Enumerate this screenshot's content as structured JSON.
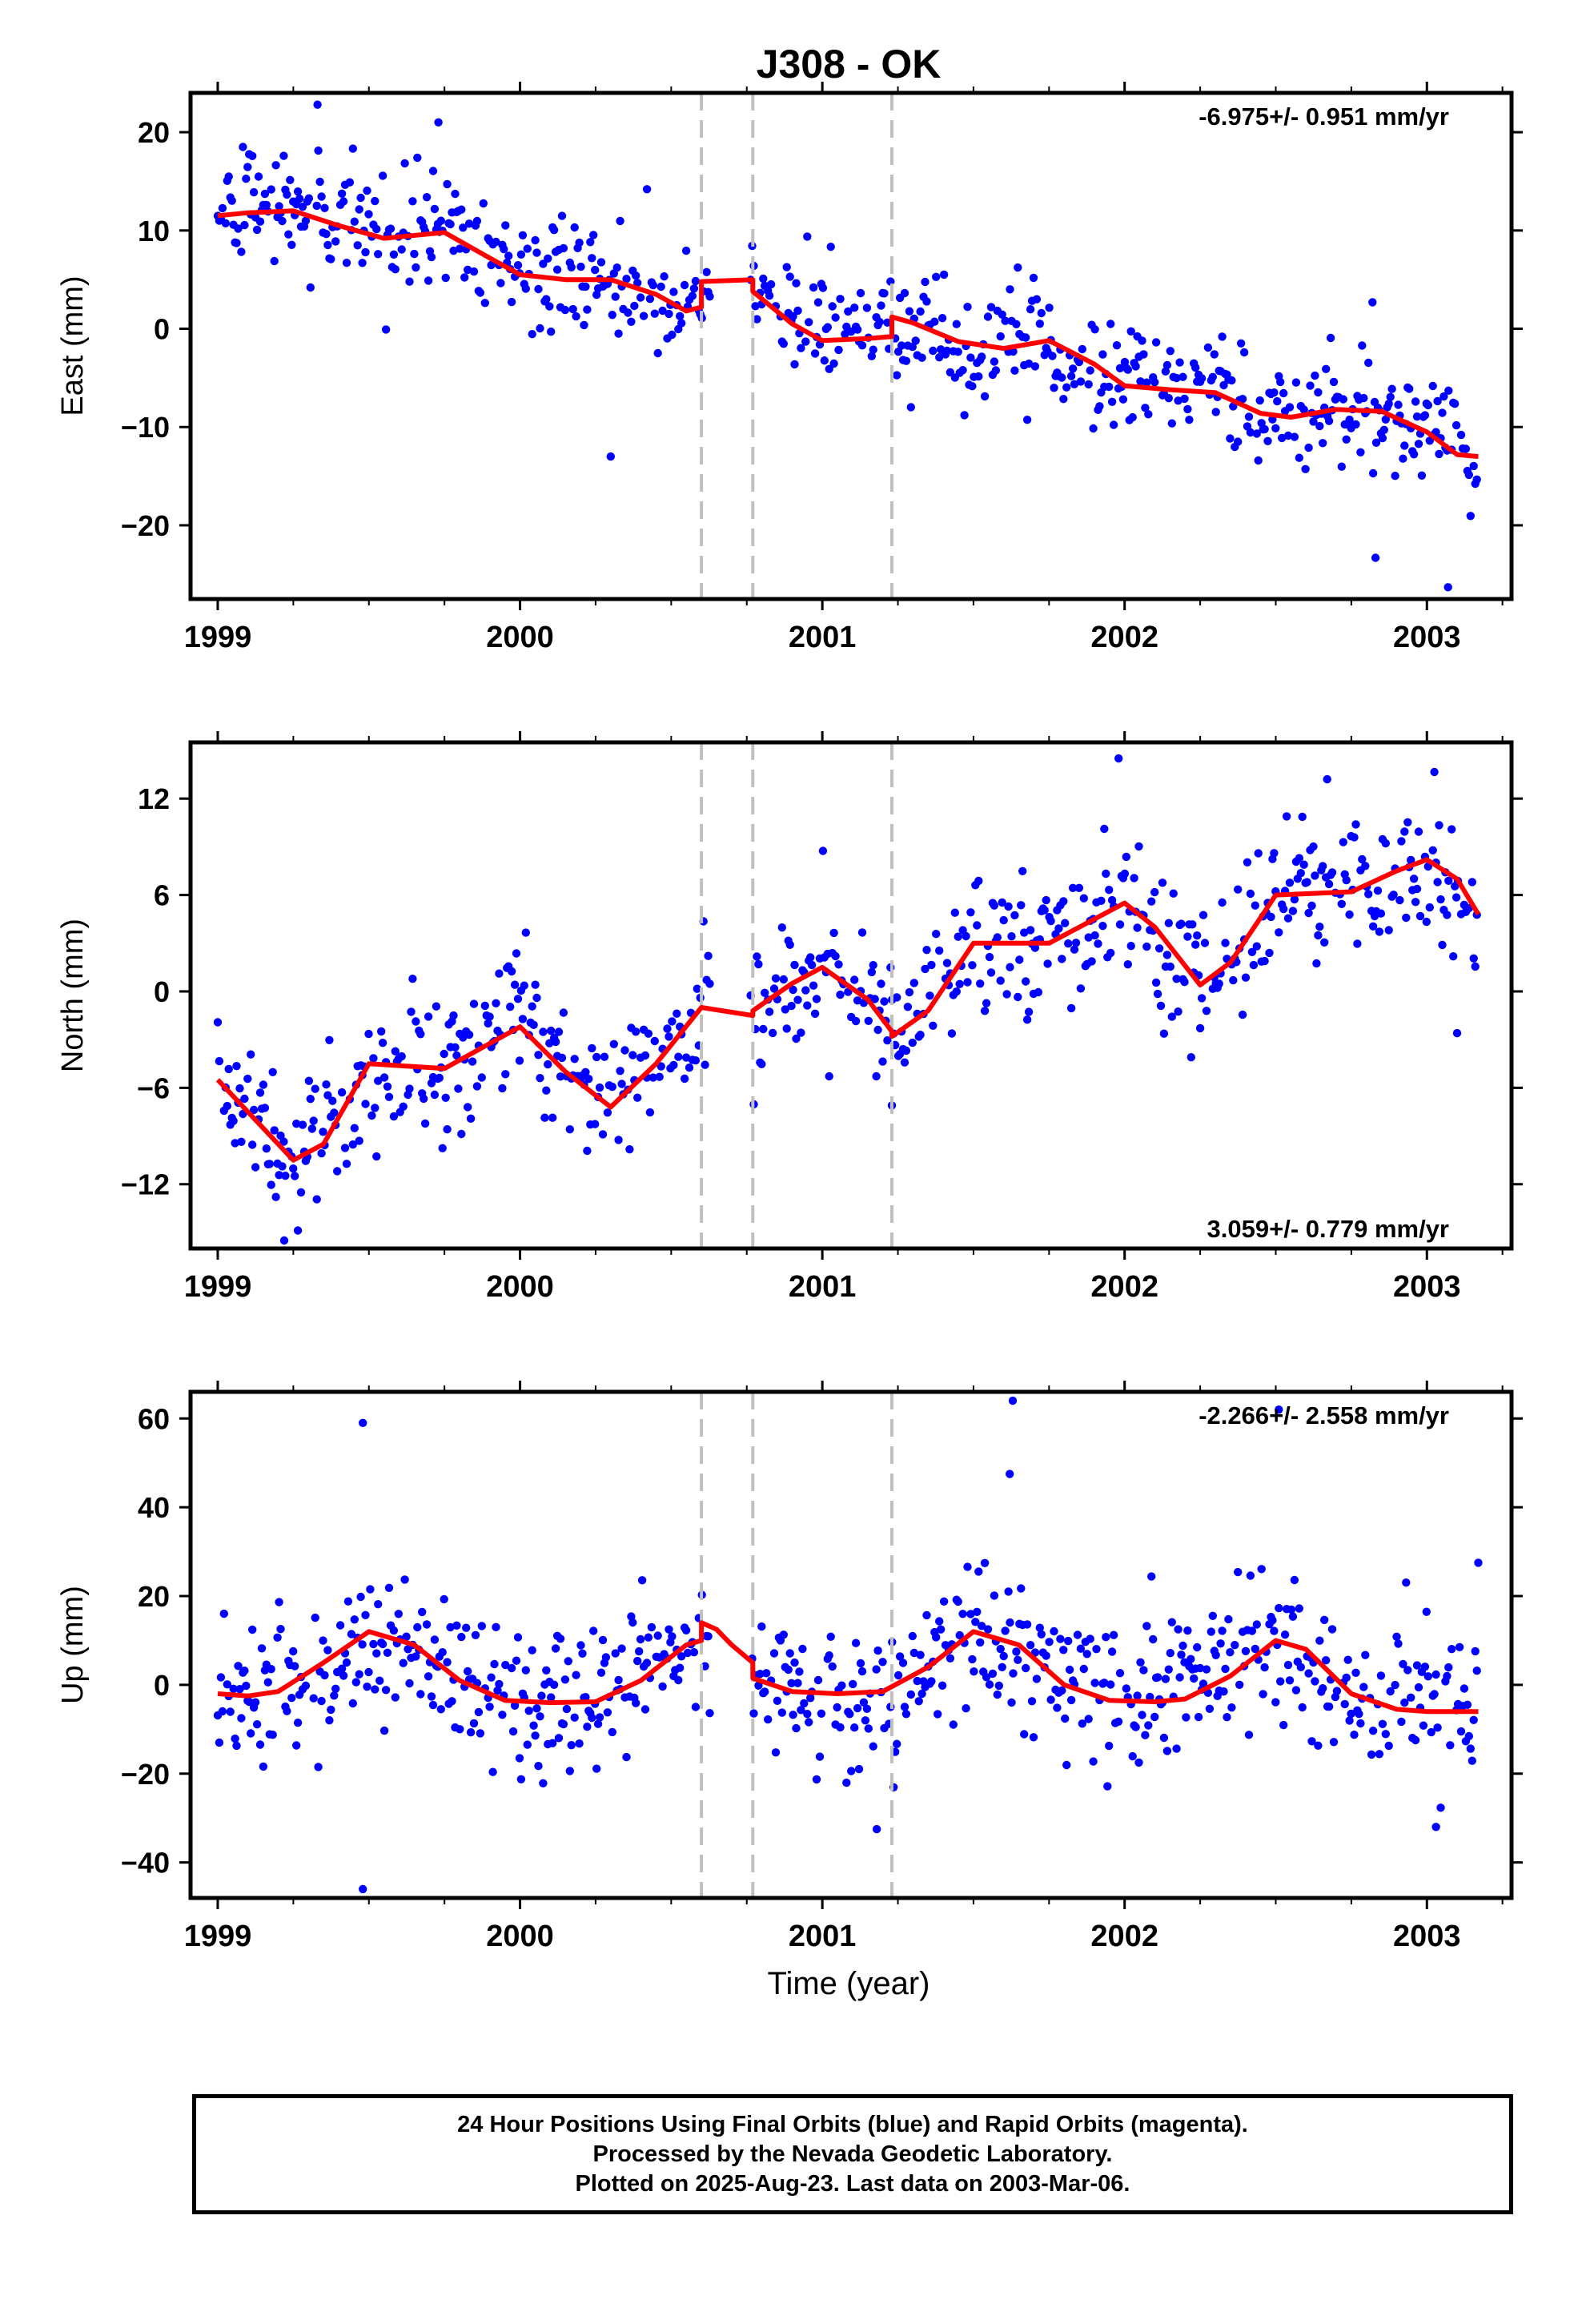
{
  "title": "J308 - OK",
  "xlabel": "Time (year)",
  "footer": {
    "line1": "24 Hour Positions Using Final Orbits (blue) and Rapid Orbits (magenta).",
    "line2": "Processed by the Nevada Geodetic Laboratory.",
    "line3": "Plotted on 2025-Aug-23. Last data on 2003-Mar-06."
  },
  "colors": {
    "points": "#0000ff",
    "model": "#ff0000",
    "event_lines": "#c0c0c0",
    "frame": "#000000"
  },
  "chart_data": [
    {
      "type": "scatter",
      "panel": "east",
      "ylabel": "East (mm)",
      "rate_label": "-6.975+/- 0.951 mm/yr",
      "xlim": [
        1998.91,
        2003.28
      ],
      "ylim": [
        -27.5,
        24
      ],
      "x_ticks": [
        "1999",
        "2000",
        "2001",
        "2002",
        "2003"
      ],
      "y_ticks": [
        20,
        10,
        0,
        -10,
        -20
      ],
      "events": [
        2000.6,
        2000.77,
        2001.23
      ],
      "series": [
        {
          "role": "model",
          "x": [
            1999.0,
            1999.1,
            1999.25,
            1999.4,
            1999.55,
            1999.75,
            1999.9,
            2000.0,
            2000.15,
            2000.3,
            2000.45,
            2000.55,
            2000.6,
            2000.6,
            2000.77,
            2000.77,
            2000.9,
            2001.0,
            2001.15,
            2001.23,
            2001.23,
            2001.3,
            2001.45,
            2001.6,
            2001.75,
            2001.9,
            2002.0,
            2002.15,
            2002.3,
            2002.45,
            2002.55,
            2002.7,
            2002.85,
            2003.0,
            2003.1,
            2003.17
          ],
          "y": [
            11.5,
            11.8,
            12.0,
            10.5,
            9.2,
            9.8,
            7.2,
            5.5,
            5.0,
            5.0,
            3.5,
            1.8,
            2.2,
            4.8,
            5.0,
            3.8,
            0.5,
            -1.2,
            -1.0,
            -0.8,
            1.2,
            0.6,
            -1.3,
            -2.0,
            -1.2,
            -3.6,
            -5.8,
            -6.2,
            -6.5,
            -8.6,
            -9.0,
            -8.2,
            -8.4,
            -10.5,
            -12.8,
            -13.0
          ]
        },
        {
          "role": "observations",
          "anchors_x": [
            1999.0,
            1999.25,
            1999.5,
            1999.75,
            2000.0,
            2000.25,
            2000.5,
            2000.6,
            2000.77,
            2001.0,
            2001.25,
            2001.5,
            2001.75,
            2002.0,
            2002.25,
            2002.5,
            2002.75,
            2003.0,
            2003.17
          ],
          "anchors_y": [
            11.5,
            13.0,
            9.5,
            10.5,
            5.5,
            5.0,
            2.5,
            4.0,
            4.0,
            0.0,
            0.0,
            -1.5,
            -1.5,
            -5.5,
            -6.0,
            -8.5,
            -8.5,
            -10.0,
            -12.0
          ],
          "scatter_sd": 2.8,
          "outliers": [
            [
              1999.33,
              22.8
            ],
            [
              1999.73,
              21.0
            ],
            [
              2000.3,
              -13.0
            ],
            [
              2000.42,
              14.2
            ],
            [
              2002.82,
              2.7
            ],
            [
              2003.07,
              -26.3
            ],
            [
              2002.83,
              -23.3
            ]
          ]
        }
      ]
    },
    {
      "type": "scatter",
      "panel": "north",
      "ylabel": "North (mm)",
      "rate_label": "3.059+/- 0.779 mm/yr",
      "xlim": [
        1998.91,
        2003.28
      ],
      "ylim": [
        -16,
        15.5
      ],
      "x_ticks": [
        "1999",
        "2000",
        "2001",
        "2002",
        "2003"
      ],
      "y_ticks": [
        12,
        6,
        0,
        -6,
        -12
      ],
      "events": [
        2000.6,
        2000.77,
        2001.23
      ],
      "series": [
        {
          "role": "model",
          "x": [
            1999.0,
            1999.1,
            1999.25,
            1999.35,
            1999.5,
            1999.75,
            2000.0,
            2000.15,
            2000.3,
            2000.45,
            2000.6,
            2000.6,
            2000.77,
            2000.77,
            2000.9,
            2001.0,
            2001.15,
            2001.23,
            2001.23,
            2001.35,
            2001.5,
            2001.75,
            2002.0,
            2002.1,
            2002.25,
            2002.35,
            2002.5,
            2002.75,
            2002.9,
            2003.0,
            2003.1,
            2003.17
          ],
          "y": [
            -5.5,
            -7.5,
            -10.5,
            -9.5,
            -4.5,
            -4.8,
            -2.2,
            -5.0,
            -7.2,
            -4.5,
            -1.0,
            -1.0,
            -1.5,
            -1.2,
            0.5,
            1.5,
            -0.5,
            -2.5,
            -2.8,
            -1.2,
            3.0,
            3.0,
            5.5,
            4.0,
            0.4,
            1.8,
            6.0,
            6.2,
            7.5,
            8.2,
            7.0,
            4.8
          ]
        },
        {
          "role": "observations",
          "anchors_x": [
            1999.0,
            1999.25,
            1999.5,
            1999.75,
            2000.0,
            2000.25,
            2000.5,
            2000.6,
            2000.77,
            2001.0,
            2001.25,
            2001.5,
            2001.75,
            2002.0,
            2002.25,
            2002.5,
            2002.75,
            2003.0,
            2003.17
          ],
          "anchors_y": [
            -5.5,
            -10.5,
            -5.0,
            -4.5,
            -2.0,
            -6.5,
            -3.0,
            -1.0,
            -2.5,
            1.5,
            -2.5,
            3.5,
            3.0,
            5.5,
            0.5,
            6.0,
            6.5,
            7.5,
            4.5
          ],
          "scatter_sd": 2.2,
          "outliers": [
            [
              2001.98,
              14.5
            ],
            [
              2002.67,
              13.2
            ],
            [
              2002.22,
              -4.1
            ],
            [
              2001.23,
              -7.1
            ],
            [
              1999.22,
              -15.5
            ],
            [
              2003.1,
              -2.6
            ]
          ]
        }
      ]
    },
    {
      "type": "scatter",
      "panel": "up",
      "ylabel": "Up (mm)",
      "rate_label": "-2.266+/- 2.558 mm/yr",
      "xlim": [
        1998.91,
        2003.28
      ],
      "ylim": [
        -48,
        66
      ],
      "x_ticks": [
        "1999",
        "2000",
        "2001",
        "2002",
        "2003"
      ],
      "y_ticks": [
        60,
        40,
        20,
        0,
        -20,
        -40
      ],
      "events": [
        2000.6,
        2000.77,
        2001.23
      ],
      "series": [
        {
          "role": "model",
          "x": [
            1999.0,
            1999.1,
            1999.2,
            1999.35,
            1999.5,
            1999.65,
            1999.8,
            1999.95,
            2000.1,
            2000.25,
            2000.4,
            2000.55,
            2000.6,
            2000.6,
            2000.65,
            2000.7,
            2000.77,
            2000.77,
            2000.9,
            2001.05,
            2001.2,
            2001.35,
            2001.5,
            2001.65,
            2001.8,
            2001.95,
            2002.1,
            2002.2,
            2002.35,
            2002.5,
            2002.6,
            2002.75,
            2002.9,
            2003.0,
            2003.17
          ],
          "y": [
            -2.0,
            -2.5,
            -1.5,
            5.0,
            12.0,
            9.0,
            1.0,
            -3.5,
            -4.0,
            -3.8,
            1.0,
            9.0,
            10.0,
            14.0,
            12.5,
            9.0,
            5.0,
            1.5,
            -1.5,
            -2.0,
            -1.5,
            4.0,
            12.0,
            9.0,
            0.0,
            -3.5,
            -3.8,
            -3.2,
            2.0,
            10.0,
            8.0,
            -2.0,
            -5.5,
            -6.0,
            -6.0
          ]
        },
        {
          "role": "observations",
          "anchors_x": [
            1999.0,
            1999.25,
            1999.5,
            1999.75,
            2000.0,
            2000.25,
            2000.5,
            2000.6,
            2000.77,
            2001.0,
            2001.25,
            2001.5,
            2001.75,
            2002.0,
            2002.25,
            2002.5,
            2002.75,
            2003.0,
            2003.17
          ],
          "anchors_y": [
            -2.0,
            0.0,
            12.0,
            3.0,
            -4.0,
            -3.0,
            8.0,
            12.0,
            3.0,
            -2.0,
            0.0,
            12.0,
            2.0,
            -4.0,
            0.0,
            10.0,
            -2.0,
            -6.0,
            -6.0
          ],
          "scatter_sd": 8.5,
          "outliers": [
            [
              1999.48,
              59.0
            ],
            [
              1999.48,
              -46.0
            ],
            [
              2001.63,
              64.0
            ],
            [
              2001.62,
              47.5
            ],
            [
              2002.51,
              62.0
            ],
            [
              2001.18,
              -32.5
            ],
            [
              2003.03,
              -32.0
            ],
            [
              2003.17,
              27.5
            ]
          ]
        }
      ]
    }
  ]
}
